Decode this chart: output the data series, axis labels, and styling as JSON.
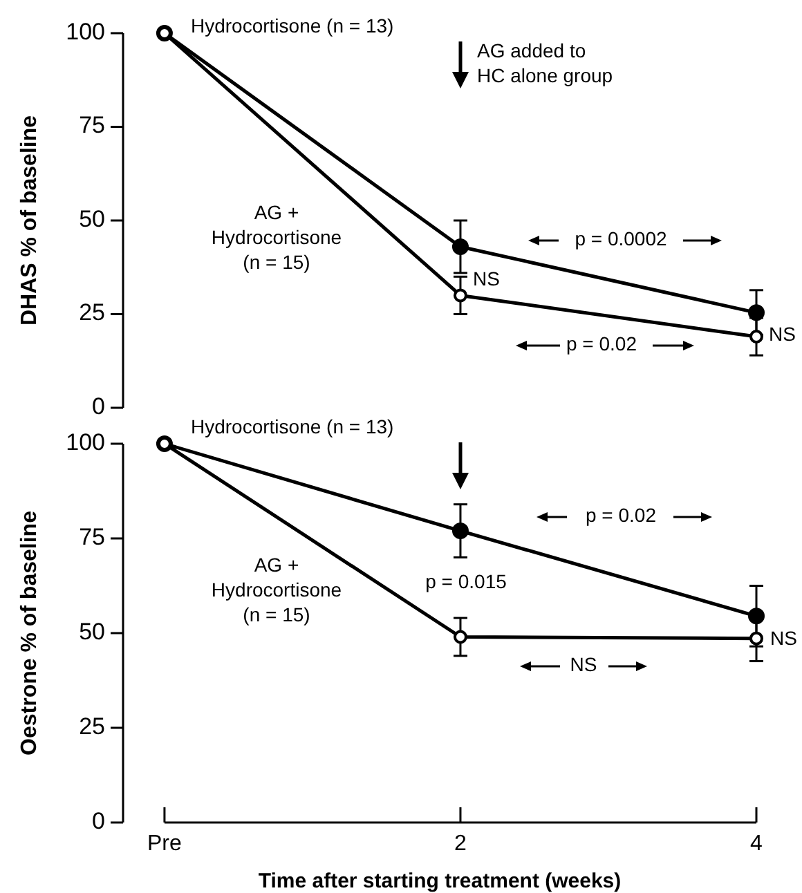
{
  "chart_data": [
    {
      "type": "line",
      "ylabel": "DHAS % of baseline",
      "x": [
        0,
        2,
        4
      ],
      "xlim": [
        -0.28,
        4
      ],
      "ylim": [
        0,
        100
      ],
      "yticks": [
        0,
        25,
        50,
        75,
        100
      ],
      "tick_labels": "y",
      "marker": "circle",
      "series": [
        {
          "name": "Hydrocortisone (n = 13)",
          "color": "#000000",
          "values": [
            100,
            43,
            25.4
          ],
          "errors": [
            null,
            7,
            6
          ]
        },
        {
          "name": "AG +\nHydrocortisone\n(n = 15)",
          "color": "#000000",
          "values": [
            100,
            30,
            19
          ],
          "errors": [
            null,
            5,
            5
          ]
        }
      ],
      "annotations": [
        "AG added to\nHC alone group",
        "p = 0.0002",
        "NS",
        "p = 0.02",
        "NS"
      ]
    },
    {
      "type": "line",
      "ylabel": "Oestrone % of baseline",
      "xlabel": "Time after starting treatment (weeks)",
      "x": [
        0,
        2,
        4
      ],
      "xlim": [
        -0.28,
        4
      ],
      "xticks": [
        {
          "value": 0,
          "label": "Pre"
        },
        2,
        4
      ],
      "ylim": [
        0,
        100
      ],
      "yticks": [
        0,
        25,
        50,
        75,
        100
      ],
      "marker": "circle",
      "series": [
        {
          "name": "Hydrocortisone (n = 13)",
          "color": "#000000",
          "values": [
            100,
            77,
            54.5
          ],
          "errors": [
            null,
            7,
            8
          ]
        },
        {
          "name": "AG +\nHydrocortisone\n(n = 15)",
          "color": "#000000",
          "values": [
            100,
            49,
            48.6
          ],
          "errors": [
            null,
            5,
            6
          ]
        }
      ],
      "annotations": [
        "p = 0.02",
        "p = 0.015",
        "NS",
        "NS"
      ]
    }
  ]
}
